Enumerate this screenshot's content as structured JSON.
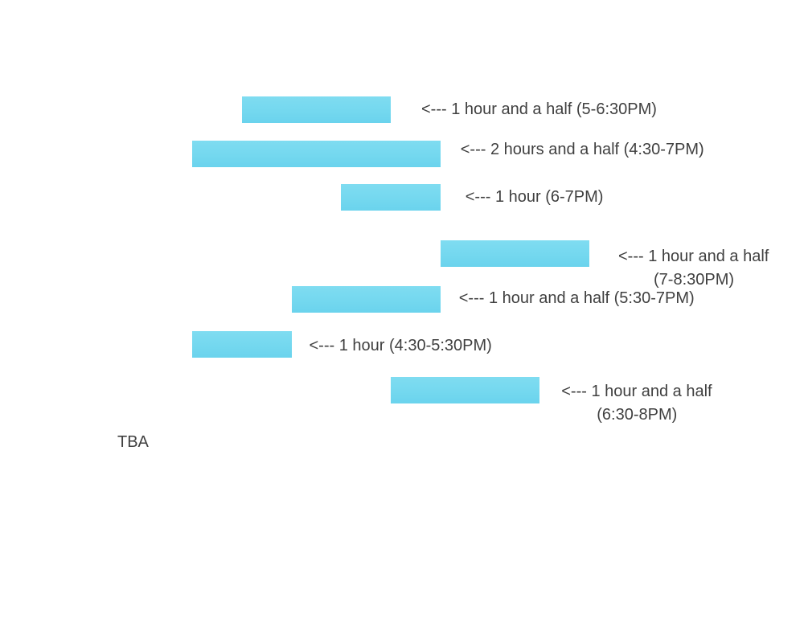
{
  "chart_data": {
    "type": "bar",
    "orientation": "horizontal",
    "note": "TBA",
    "bars": [
      {
        "start": "5:00PM",
        "end": "6:30PM",
        "label": "<--- 1 hour and a half (5-6:30PM)",
        "label2": ""
      },
      {
        "start": "4:30PM",
        "end": "7:00PM",
        "label": "<--- 2 hours and a half (4:30-7PM)",
        "label2": ""
      },
      {
        "start": "6:00PM",
        "end": "7:00PM",
        "label": "<--- 1 hour (6-7PM)",
        "label2": ""
      },
      {
        "start": "7:00PM",
        "end": "8:30PM",
        "label": "<--- 1 hour and a half",
        "label2": "(7-8:30PM)"
      },
      {
        "start": "5:30PM",
        "end": "7:00PM",
        "label": "<--- 1 hour and a half (5:30-7PM)",
        "label2": ""
      },
      {
        "start": "4:30PM",
        "end": "5:30PM",
        "label": "<--- 1 hour (4:30-5:30PM)",
        "label2": ""
      },
      {
        "start": "6:30PM",
        "end": "8:00PM",
        "label": "<--- 1 hour and a half",
        "label2": "(6:30-8PM)"
      }
    ],
    "colors": {
      "bar": "#74d8ef",
      "text": "#404040"
    }
  }
}
